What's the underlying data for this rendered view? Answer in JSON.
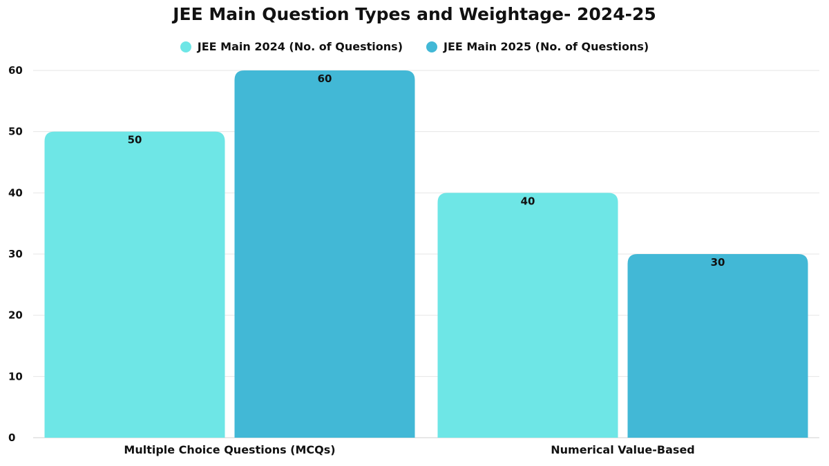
{
  "chart_data": {
    "type": "bar",
    "title": "JEE Main Question Types and Weightage- 2024-25",
    "xlabel": "",
    "ylabel": "",
    "categories": [
      "Multiple Choice Questions (MCQs)",
      "Numerical Value-Based"
    ],
    "series": [
      {
        "name": "JEE Main 2024 (No. of Questions)",
        "values": [
          50,
          40
        ],
        "color": "#6ee6e6"
      },
      {
        "name": "JEE Main 2025 (No. of Questions)",
        "values": [
          60,
          30
        ],
        "color": "#42b8d6"
      }
    ],
    "ylim": [
      0,
      60
    ],
    "yticks": [
      0,
      10,
      20,
      30,
      40,
      50,
      60
    ],
    "grid": true,
    "legend_position": "top-center",
    "data_labels": true
  }
}
